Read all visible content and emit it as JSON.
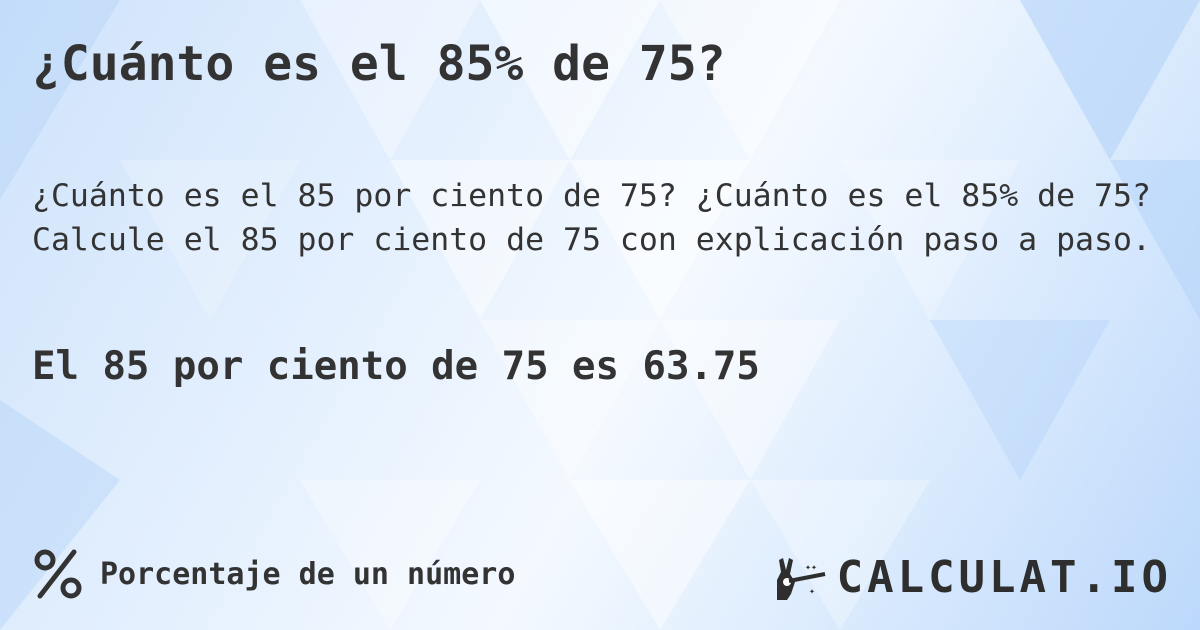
{
  "title": "¿Cuánto es el 85% de 75?",
  "description": "¿Cuánto es el 85 por ciento de 75? ¿Cuánto es el 85% de 75?\nCalcule el 85 por ciento de 75 con explicación paso a paso.",
  "result": "El 85 por ciento de 75 es 63.75",
  "footer": {
    "icon": "percent-icon",
    "label": "Porcentaje de un número"
  },
  "logo": {
    "text": "CALCULAT.IO",
    "icon": "magic-hand-wand-icon"
  },
  "colors": {
    "text": "#333333",
    "background": "#d6e8fd"
  }
}
